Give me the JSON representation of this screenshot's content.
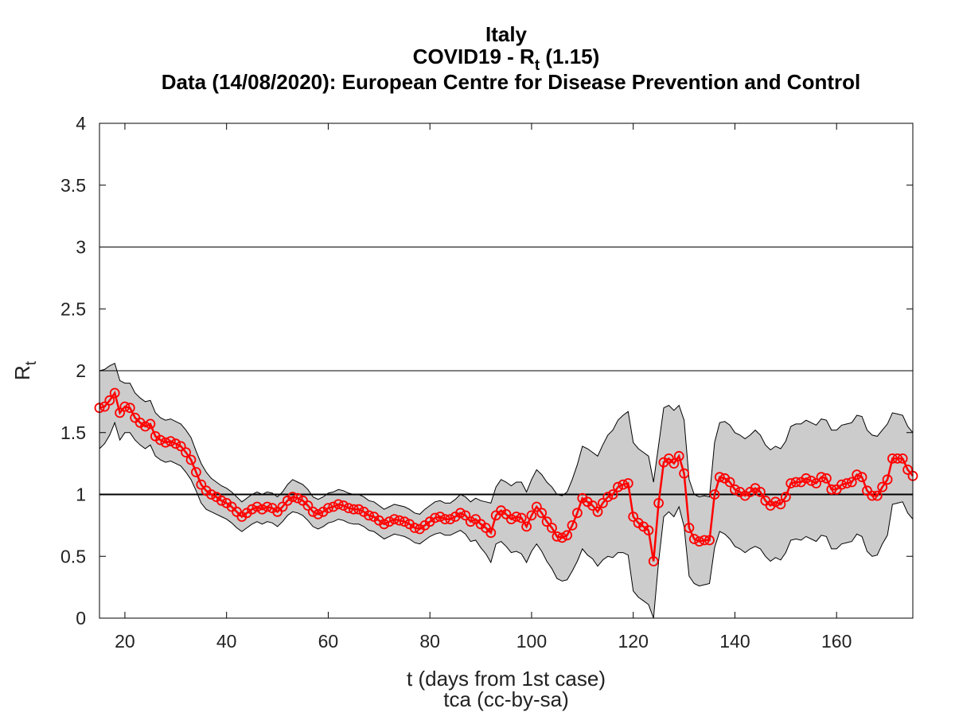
{
  "title_lines": {
    "line1": "Italy",
    "line2_main": "COVID19 - R",
    "line2_sub": "t",
    "line2_tail": " (1.15)",
    "line3": "Data (14/08/2020): European Centre for Disease Prevention and Control"
  },
  "chart_data": {
    "type": "line",
    "xlabel": "t (days from 1st case)",
    "credit": "tca (cc-by-sa)",
    "ylabel": "R",
    "ylabel_sub": "t",
    "xlim": [
      15,
      175
    ],
    "ylim": [
      0,
      4
    ],
    "xticks": [
      20,
      40,
      60,
      80,
      100,
      120,
      140,
      160
    ],
    "yticks": [
      0,
      0.5,
      1,
      1.5,
      2,
      2.5,
      3,
      3.5,
      4
    ],
    "ytick_labels": [
      "0",
      "0.5",
      "1",
      "1.5",
      "2",
      "2.5",
      "3",
      "3.5",
      "4"
    ],
    "reference_lines": [
      1,
      2,
      3
    ],
    "grid": false,
    "colors": {
      "series": "#ff0000",
      "band": "#cccccc",
      "band_edge": "#000000"
    },
    "series": [
      {
        "x": [
          15,
          16,
          17,
          18,
          19,
          20,
          21,
          22,
          23,
          24,
          25,
          26,
          27,
          28,
          29,
          30,
          31,
          32,
          33,
          34,
          35,
          36,
          37,
          38,
          39,
          40,
          41,
          42,
          43,
          44,
          45,
          46,
          47,
          48,
          49,
          50,
          51,
          52,
          53,
          54,
          55,
          56,
          57,
          58,
          59,
          60,
          61,
          62,
          63,
          64,
          65,
          66,
          67,
          68,
          69,
          70,
          71,
          72,
          73,
          74,
          75,
          76,
          77,
          78,
          79,
          80,
          81,
          82,
          83,
          84,
          85,
          86,
          87,
          88,
          89,
          90,
          91,
          92,
          93,
          94,
          95,
          96,
          97,
          98,
          99,
          100,
          101,
          102,
          103,
          104,
          105,
          106,
          107,
          108,
          109,
          110,
          111,
          112,
          113,
          114,
          115,
          116,
          117,
          118,
          119,
          120,
          121,
          122,
          123,
          124,
          125,
          126,
          127,
          128,
          129,
          130,
          131,
          132,
          133,
          134,
          135,
          136,
          137,
          138,
          139,
          140,
          141,
          142,
          143,
          144,
          145,
          146,
          147,
          148,
          149,
          150,
          151,
          152,
          153,
          154,
          155,
          156,
          157,
          158,
          159,
          160,
          161,
          162,
          163,
          164,
          165,
          166,
          167,
          168,
          169,
          170,
          171,
          172,
          173,
          174,
          175
        ],
        "y": [
          1.7,
          1.71,
          1.76,
          1.82,
          1.66,
          1.71,
          1.7,
          1.62,
          1.58,
          1.55,
          1.57,
          1.47,
          1.44,
          1.42,
          1.43,
          1.41,
          1.39,
          1.34,
          1.28,
          1.18,
          1.08,
          1.03,
          1.0,
          0.98,
          0.95,
          0.93,
          0.9,
          0.86,
          0.82,
          0.85,
          0.88,
          0.9,
          0.88,
          0.9,
          0.89,
          0.86,
          0.9,
          0.95,
          0.98,
          0.97,
          0.95,
          0.91,
          0.86,
          0.84,
          0.86,
          0.89,
          0.9,
          0.92,
          0.91,
          0.89,
          0.88,
          0.88,
          0.86,
          0.83,
          0.82,
          0.79,
          0.76,
          0.78,
          0.8,
          0.79,
          0.78,
          0.76,
          0.73,
          0.72,
          0.75,
          0.78,
          0.81,
          0.82,
          0.8,
          0.8,
          0.82,
          0.85,
          0.83,
          0.78,
          0.8,
          0.76,
          0.73,
          0.69,
          0.83,
          0.87,
          0.84,
          0.8,
          0.82,
          0.81,
          0.74,
          0.83,
          0.9,
          0.85,
          0.78,
          0.73,
          0.66,
          0.65,
          0.67,
          0.75,
          0.85,
          0.97,
          0.94,
          0.91,
          0.86,
          0.93,
          0.98,
          1.0,
          1.06,
          1.08,
          1.09,
          0.82,
          0.77,
          0.74,
          0.71,
          0.46,
          0.93,
          1.26,
          1.29,
          1.25,
          1.31,
          1.17,
          0.73,
          0.64,
          0.62,
          0.63,
          0.63,
          1.0,
          1.14,
          1.13,
          1.1,
          1.04,
          1.02,
          0.99,
          1.02,
          1.05,
          1.02,
          0.95,
          0.91,
          0.94,
          0.92,
          0.98,
          1.09,
          1.1,
          1.1,
          1.13,
          1.11,
          1.09,
          1.14,
          1.13,
          1.04,
          1.04,
          1.08,
          1.09,
          1.1,
          1.16,
          1.14,
          1.03,
          0.99,
          0.99,
          1.06,
          1.12,
          1.29,
          1.29,
          1.29,
          1.2,
          1.15
        ]
      }
    ],
    "band": {
      "upper": [
        2.0,
        2.01,
        2.04,
        2.06,
        1.92,
        1.9,
        1.9,
        1.82,
        1.78,
        1.75,
        1.76,
        1.66,
        1.62,
        1.6,
        1.61,
        1.59,
        1.57,
        1.52,
        1.46,
        1.35,
        1.25,
        1.18,
        1.13,
        1.1,
        1.07,
        1.05,
        1.02,
        0.98,
        0.94,
        0.97,
        1.0,
        1.02,
        1.0,
        1.02,
        1.01,
        0.98,
        1.02,
        1.08,
        1.12,
        1.1,
        1.08,
        1.04,
        0.98,
        0.96,
        0.98,
        1.01,
        1.02,
        1.04,
        1.03,
        1.01,
        1.0,
        1.0,
        0.98,
        0.95,
        0.94,
        0.91,
        0.88,
        0.9,
        0.92,
        0.91,
        0.9,
        0.88,
        0.85,
        0.84,
        0.88,
        0.91,
        0.94,
        0.95,
        0.93,
        0.93,
        0.96,
        1.0,
        0.98,
        0.94,
        0.97,
        0.95,
        0.94,
        0.93,
        1.06,
        1.12,
        1.1,
        1.07,
        1.1,
        1.1,
        1.02,
        1.12,
        1.2,
        1.16,
        1.1,
        1.06,
        1.0,
        0.99,
        1.02,
        1.12,
        1.24,
        1.39,
        1.37,
        1.34,
        1.31,
        1.4,
        1.48,
        1.52,
        1.6,
        1.64,
        1.67,
        1.42,
        1.37,
        1.34,
        1.31,
        1.1,
        1.4,
        1.7,
        1.72,
        1.68,
        1.72,
        1.6,
        1.12,
        1.0,
        0.98,
        0.99,
        0.98,
        1.42,
        1.58,
        1.59,
        1.56,
        1.5,
        1.48,
        1.45,
        1.48,
        1.52,
        1.48,
        1.4,
        1.36,
        1.39,
        1.37,
        1.43,
        1.55,
        1.57,
        1.57,
        1.6,
        1.58,
        1.56,
        1.61,
        1.6,
        1.52,
        1.52,
        1.56,
        1.57,
        1.58,
        1.64,
        1.63,
        1.52,
        1.48,
        1.47,
        1.52,
        1.57,
        1.66,
        1.65,
        1.64,
        1.55,
        1.5
      ],
      "lower": [
        1.37,
        1.41,
        1.48,
        1.58,
        1.44,
        1.5,
        1.5,
        1.44,
        1.4,
        1.37,
        1.4,
        1.31,
        1.28,
        1.26,
        1.27,
        1.25,
        1.23,
        1.18,
        1.12,
        1.03,
        0.93,
        0.88,
        0.86,
        0.84,
        0.82,
        0.8,
        0.77,
        0.73,
        0.7,
        0.73,
        0.76,
        0.78,
        0.76,
        0.78,
        0.77,
        0.74,
        0.78,
        0.83,
        0.86,
        0.85,
        0.83,
        0.79,
        0.74,
        0.72,
        0.74,
        0.77,
        0.78,
        0.8,
        0.79,
        0.77,
        0.76,
        0.76,
        0.74,
        0.71,
        0.7,
        0.67,
        0.64,
        0.66,
        0.68,
        0.67,
        0.66,
        0.64,
        0.61,
        0.6,
        0.63,
        0.66,
        0.68,
        0.69,
        0.67,
        0.67,
        0.69,
        0.71,
        0.68,
        0.62,
        0.63,
        0.57,
        0.52,
        0.45,
        0.6,
        0.62,
        0.58,
        0.53,
        0.54,
        0.52,
        0.45,
        0.54,
        0.6,
        0.54,
        0.46,
        0.4,
        0.32,
        0.3,
        0.31,
        0.38,
        0.46,
        0.56,
        0.51,
        0.48,
        0.42,
        0.47,
        0.5,
        0.49,
        0.53,
        0.53,
        0.51,
        0.22,
        0.17,
        0.14,
        0.11,
        0.0,
        0.46,
        0.82,
        0.86,
        0.82,
        0.9,
        0.74,
        0.34,
        0.28,
        0.26,
        0.27,
        0.28,
        0.57,
        0.7,
        0.68,
        0.64,
        0.58,
        0.56,
        0.53,
        0.56,
        0.58,
        0.56,
        0.5,
        0.46,
        0.49,
        0.47,
        0.53,
        0.63,
        0.64,
        0.63,
        0.66,
        0.64,
        0.62,
        0.67,
        0.66,
        0.56,
        0.56,
        0.6,
        0.61,
        0.62,
        0.68,
        0.66,
        0.54,
        0.5,
        0.51,
        0.6,
        0.67,
        0.92,
        0.93,
        0.94,
        0.85,
        0.8
      ]
    }
  }
}
